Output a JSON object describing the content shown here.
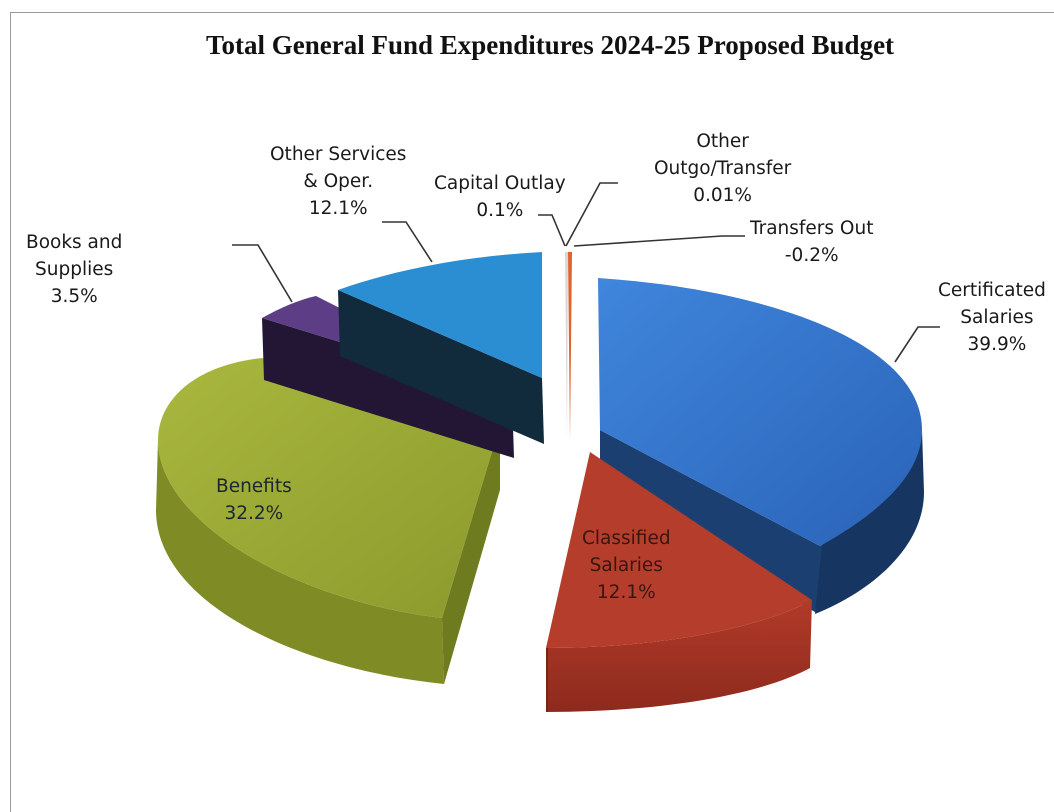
{
  "chart_data": {
    "type": "pie",
    "title": "Total General Fund Expenditures 2024-25 Proposed Budget",
    "style": "3d-exploded",
    "slices": [
      {
        "label": "Certificated Salaries",
        "value": 39.9,
        "display": "39.9%",
        "color": "#2e6fc4"
      },
      {
        "label": "Classified Salaries",
        "value": 12.1,
        "display": "12.1%",
        "color": "#b13c2c"
      },
      {
        "label": "Benefits",
        "value": 32.2,
        "display": "32.2%",
        "color": "#98a631"
      },
      {
        "label": "Books and Supplies",
        "value": 3.5,
        "display": "3.5%",
        "color": "#5a3c82"
      },
      {
        "label": "Other Services & Oper.",
        "value": 12.1,
        "display": "12.1%",
        "color": "#2c8ed0"
      },
      {
        "label": "Capital Outlay",
        "value": 0.1,
        "display": "0.1%",
        "color": "#c0c0c0"
      },
      {
        "label": "Other Outgo/Transfer",
        "value": 0.01,
        "display": "0.01%",
        "color": "#e06030"
      },
      {
        "label": "Transfers Out",
        "value": -0.2,
        "display": "-0.2%",
        "color": "#e0a080"
      }
    ]
  },
  "labels": {
    "certificated": {
      "line1": "Certificated",
      "line2": "Salaries",
      "line3": "39.9%"
    },
    "classified": {
      "line1": "Classified",
      "line2": "Salaries",
      "line3": "12.1%"
    },
    "benefits": {
      "line1": "Benefits",
      "line2": "32.2%"
    },
    "books": {
      "line1": "Books and",
      "line2": "Supplies",
      "line3": "3.5%"
    },
    "other_services": {
      "line1": "Other Services",
      "line2": "& Oper.",
      "line3": "12.1%"
    },
    "capital": {
      "line1": "Capital Outlay",
      "line2": "0.1%"
    },
    "other_outgo": {
      "line1": "Other",
      "line2": "Outgo/Transfer",
      "line3": "0.01%"
    },
    "transfers_out": {
      "line1": "Transfers Out",
      "line2": "-0.2%"
    }
  }
}
